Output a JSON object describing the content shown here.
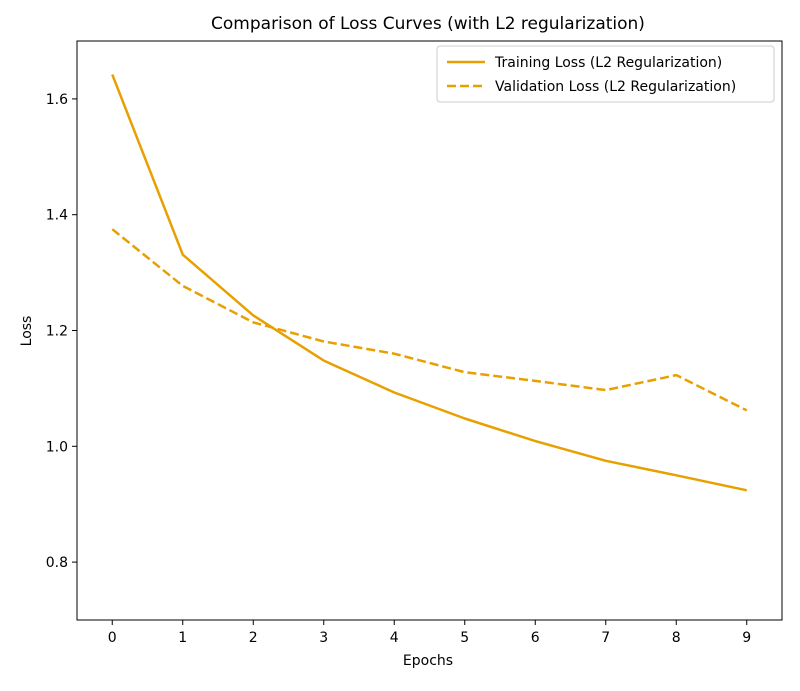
{
  "chart_data": {
    "type": "line",
    "title": "Comparison of Loss Curves (with L2 regularization)",
    "xlabel": "Epochs",
    "ylabel": "Loss",
    "xlim": [
      -0.5,
      9.5
    ],
    "ylim": [
      0.7,
      1.7
    ],
    "x_ticks": [
      "0",
      "1",
      "2",
      "3",
      "4",
      "5",
      "6",
      "7",
      "8",
      "9"
    ],
    "y_ticks": [
      "0.8",
      "1.0",
      "1.2",
      "1.4",
      "1.6"
    ],
    "x": [
      0,
      1,
      2,
      3,
      4,
      5,
      6,
      7,
      8,
      9
    ],
    "series": [
      {
        "name": "Training Loss (L2 Regularization)",
        "style": "solid",
        "color": "#E8A000",
        "values": [
          1.642,
          1.331,
          1.226,
          1.148,
          1.093,
          1.048,
          1.009,
          0.975,
          0.95,
          0.924
        ]
      },
      {
        "name": "Validation Loss (L2 Regularization)",
        "style": "dashed",
        "color": "#E8A000",
        "values": [
          1.375,
          1.277,
          1.214,
          1.181,
          1.16,
          1.128,
          1.113,
          1.097,
          1.123,
          1.062
        ]
      }
    ],
    "grid": false,
    "legend_position": "top-right"
  }
}
